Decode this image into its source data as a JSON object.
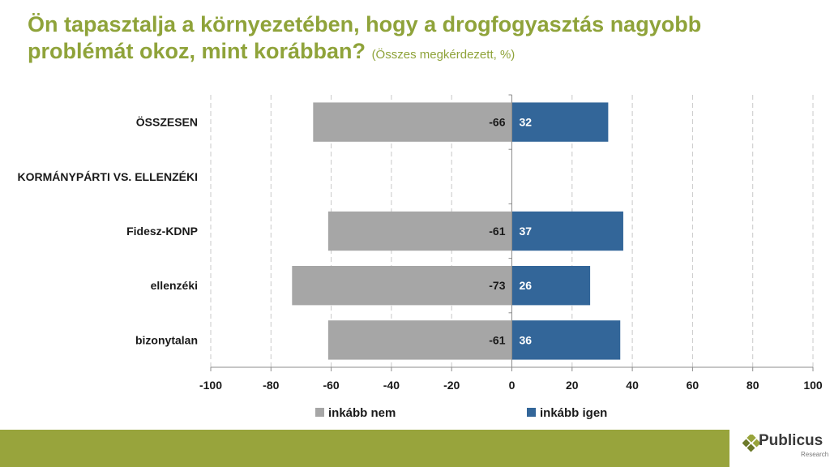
{
  "header": {
    "title": "Ön tapasztalja a környezetében, hogy a drogfogyasztás nagyobb problémát okoz, mint korábban?",
    "subtitle": "(Összes megkérdezett, %)"
  },
  "chart_data": {
    "type": "bar",
    "orientation": "horizontal",
    "stacked": "diverging",
    "categories": [
      "ÖSSZESEN",
      "KORMÁNYPÁRTI VS. ELLENZÉKI",
      "Fidesz-KDNP",
      "ellenzéki",
      "bizonytalan"
    ],
    "series": [
      {
        "name": "inkább nem",
        "color": "#a6a6a6",
        "values": [
          -66,
          null,
          -61,
          -73,
          -61
        ]
      },
      {
        "name": "inkább igen",
        "color": "#336699",
        "values": [
          32,
          null,
          37,
          26,
          36
        ]
      }
    ],
    "xlim": [
      -100,
      100
    ],
    "xticks": [
      -100,
      -80,
      -60,
      -40,
      -20,
      0,
      20,
      40,
      60,
      80,
      100
    ],
    "grid": "vertical-dashed",
    "legend": "bottom"
  },
  "brand": {
    "name": "Publicus",
    "tagline": "Research",
    "accent": "#98a43c",
    "title_color": "#8fa33a"
  }
}
